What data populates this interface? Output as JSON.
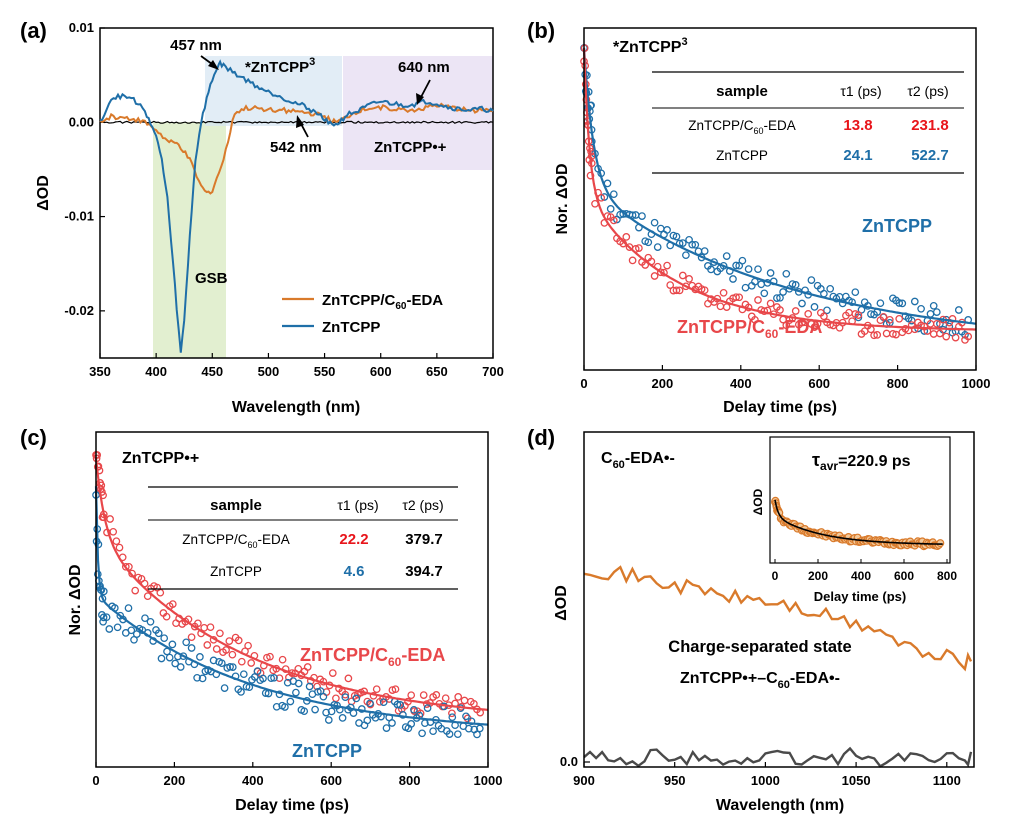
{
  "colors": {
    "orange": "#d97a2b",
    "blue": "#1f6fa8",
    "red": "#e8474a",
    "darkred": "#e8151b",
    "gray": "#4a4a4a",
    "green_band": "#d8e9c0",
    "blue_band": "#d6e6f2",
    "purple_band": "#e6dcf2"
  },
  "chart_data": [
    {
      "type": "line",
      "panel": "(a)",
      "xlabel": "Wavelength (nm)",
      "ylabel": "ΔOD",
      "xlim": [
        350,
        700
      ],
      "ylim": [
        -0.025,
        0.01
      ],
      "xticks": [
        "350",
        "400",
        "450",
        "500",
        "550",
        "600",
        "650",
        "700"
      ],
      "yticks": [
        "0.01",
        "0.00",
        "-0.01",
        "-0.02"
      ],
      "yticks_values": [
        0.01,
        0.0,
        -0.01,
        -0.02
      ],
      "legend": [
        "ZnTCPP/C60-EDA",
        "ZnTCPP"
      ],
      "annotations": {
        "peak1": "457 nm",
        "peak2": "542 nm",
        "peak3": "640 nm",
        "gsb": "GSB",
        "excited_prefix": "*ZnTCPP",
        "excited_sup": "3",
        "cation": "ZnTCPP•+"
      },
      "series": [
        {
          "name": "ZnTCPP/C60-EDA",
          "x": [
            350,
            360,
            380,
            390,
            400,
            410,
            415,
            420,
            430,
            440,
            445,
            450,
            460,
            470,
            480,
            500,
            520,
            540,
            550,
            555,
            560,
            565,
            570,
            580,
            590,
            600,
            610,
            620,
            630,
            640,
            650,
            660,
            670,
            680,
            690,
            700
          ],
          "y": [
            0.0,
            0.0006,
            0.0004,
            0.0,
            -0.0008,
            -0.002,
            -0.0022,
            -0.0023,
            -0.004,
            -0.0068,
            -0.0075,
            -0.0072,
            -0.004,
            0.001,
            0.0015,
            0.0014,
            0.0012,
            0.0009,
            0.0006,
            0.0002,
            0.0,
            0.0002,
            0.0006,
            0.0012,
            0.0015,
            0.0016,
            0.0015,
            0.0013,
            0.0013,
            0.0016,
            0.0018,
            0.0016,
            0.0014,
            0.0012,
            0.0014,
            0.0012
          ]
        },
        {
          "name": "ZnTCPP",
          "x": [
            350,
            360,
            370,
            380,
            390,
            395,
            400,
            405,
            410,
            415,
            420,
            422,
            425,
            430,
            435,
            440,
            445,
            450,
            455,
            457,
            460,
            470,
            480,
            490,
            500,
            510,
            520,
            530,
            540,
            545,
            550,
            555,
            560,
            565,
            570,
            580,
            590,
            600,
            610,
            620,
            630,
            640,
            650,
            660,
            670,
            680,
            690,
            700
          ],
          "y": [
            0.0,
            0.0025,
            0.0028,
            0.0024,
            0.0012,
            0.0,
            -0.0015,
            -0.004,
            -0.008,
            -0.015,
            -0.022,
            -0.0245,
            -0.021,
            -0.012,
            -0.004,
            0.0,
            0.0025,
            0.0045,
            0.006,
            0.0063,
            0.006,
            0.0052,
            0.0045,
            0.0038,
            0.0032,
            0.0028,
            0.0022,
            0.0018,
            0.0012,
            0.0008,
            0.0004,
            0.0,
            -0.0003,
            0.0002,
            0.0008,
            0.0012,
            0.0018,
            0.0022,
            0.002,
            0.0018,
            0.0019,
            0.0022,
            0.002,
            0.0016,
            0.0014,
            0.0013,
            0.0014,
            0.0012
          ]
        },
        {
          "name": "baseline",
          "x": [
            350,
            700
          ],
          "y": [
            0.0,
            0.0
          ]
        }
      ]
    },
    {
      "type": "scatter",
      "panel": "(b)",
      "title_prefix": "*ZnTCPP",
      "title_sup": "3",
      "xlabel": "Delay time (ps)",
      "ylabel": "Nor. ΔOD",
      "xlim": [
        0,
        1000
      ],
      "ylim": [
        0,
        1
      ],
      "xticks": [
        "0",
        "200",
        "400",
        "600",
        "800",
        "1000"
      ],
      "series": [
        {
          "name": "ZnTCPP",
          "label": "ZnTCPP",
          "tau1": 24.1,
          "tau2": 522.7,
          "a1": 0.5,
          "a2": 0.5
        },
        {
          "name": "ZnTCPP/C60-EDA",
          "label_prefix": "ZnTCPP/C",
          "label_sub": "60",
          "label_suffix": "-EDA",
          "tau1": 13.8,
          "tau2": 231.8,
          "a1": 0.55,
          "a2": 0.45
        }
      ],
      "table": {
        "headers": [
          "sample",
          "τ1 (ps)",
          "τ2 (ps)"
        ],
        "rows": [
          {
            "sample_prefix": "ZnTCPP/C",
            "sample_sub": "60",
            "sample_suffix": "-EDA",
            "t1": "13.8",
            "t2": "231.8"
          },
          {
            "sample": "ZnTCPP",
            "t1": "24.1",
            "t2": "522.7"
          }
        ]
      }
    },
    {
      "type": "scatter",
      "panel": "(c)",
      "title": "ZnTCPP•+",
      "xlabel": "Delay time (ps)",
      "ylabel": "Nor. ΔOD",
      "xlim": [
        0,
        1000
      ],
      "ylim": [
        0,
        1
      ],
      "xticks": [
        "0",
        "200",
        "400",
        "600",
        "800",
        "1000"
      ],
      "series": [
        {
          "name": "ZnTCPP/C60-EDA",
          "label_prefix": "ZnTCPP/C",
          "label_sub": "60",
          "label_suffix": "-EDA",
          "tau1": 22.2,
          "tau2": 379.7
        },
        {
          "name": "ZnTCPP",
          "label": "ZnTCPP",
          "tau1": 4.6,
          "tau2": 394.7
        }
      ],
      "table": {
        "headers": [
          "sample",
          "τ1 (ps)",
          "τ2 (ps)"
        ],
        "rows": [
          {
            "sample_prefix": "ZnTCPP/C",
            "sample_sub": "60",
            "sample_suffix": "-EDA",
            "t1": "22.2",
            "t2": "379.7"
          },
          {
            "sample": "ZnTCPP",
            "t1": "4.6",
            "t2": "394.7"
          }
        ]
      }
    },
    {
      "type": "line",
      "panel": "(d)",
      "title_prefix": "C",
      "title_sub": "60",
      "title_suffix": "-EDA•-",
      "xlabel": "Wavelength (nm)",
      "ylabel": "ΔOD",
      "xlim": [
        900,
        1115
      ],
      "xticks": [
        "900",
        "950",
        "1000",
        "1050",
        "1100"
      ],
      "yticks": [
        "0.0"
      ],
      "annotation_line1": "Charge-separated state",
      "annotation_line2_prefix": "ZnTCPP•+–C",
      "annotation_line2_sub": "60",
      "annotation_line2_suffix": "-EDA•-",
      "series": [
        {
          "name": "ZnTCPP/C60-EDA",
          "x": [
            900,
            910,
            920,
            930,
            940,
            950,
            960,
            970,
            980,
            990,
            1000,
            1010,
            1020,
            1030,
            1040,
            1050,
            1060,
            1070,
            1080,
            1090,
            1100,
            1110,
            1115
          ],
          "y": [
            0.95,
            0.93,
            0.92,
            0.9,
            0.88,
            0.86,
            0.85,
            0.83,
            0.8,
            0.8,
            0.78,
            0.77,
            0.74,
            0.72,
            0.7,
            0.66,
            0.66,
            0.6,
            0.56,
            0.5,
            0.54,
            0.48,
            0.52
          ]
        },
        {
          "name": "reference",
          "x": [
            900,
            910,
            920,
            930,
            940,
            950,
            960,
            970,
            980,
            990,
            1000,
            1010,
            1020,
            1030,
            1040,
            1050,
            1060,
            1070,
            1080,
            1090,
            1100,
            1110,
            1115
          ],
          "y": [
            0.02,
            0.03,
            0.0,
            0.01,
            0.04,
            0.0,
            0.02,
            0.03,
            0.0,
            0.01,
            0.02,
            0.04,
            0.0,
            0.03,
            0.01,
            0.05,
            0.0,
            0.02,
            0.04,
            0.01,
            0.03,
            0.0,
            0.04
          ]
        }
      ],
      "inset": {
        "label": "τavr=220.9 ps",
        "label_main": "τ",
        "label_sub": "avr",
        "label_rest": "=220.9 ps",
        "xlabel": "Delay time (ps)",
        "ylabel": "ΔOD",
        "xlim": [
          0,
          800
        ],
        "xticks": [
          "0",
          "200",
          "400",
          "600",
          "800"
        ],
        "tau_avr": 220.9
      }
    }
  ]
}
